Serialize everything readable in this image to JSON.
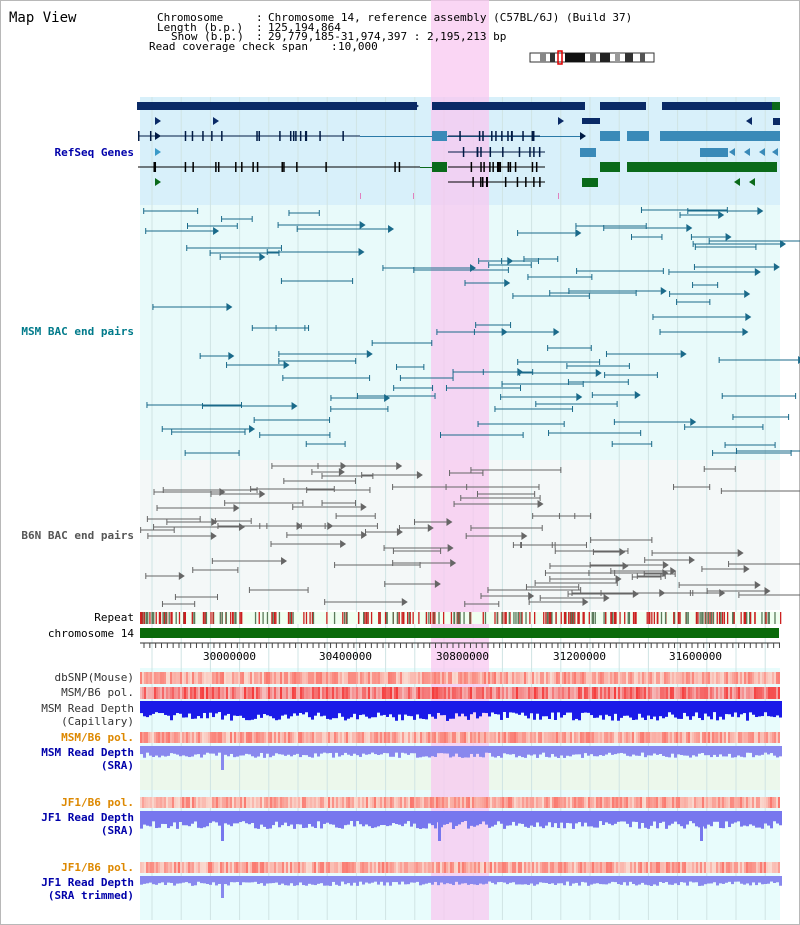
{
  "title": "Map View",
  "header": {
    "chrom_label": "Chromosome",
    "chrom_value": "Chromosome 14, reference assembly (C57BL/6J) (Build 37)",
    "length_label": "Length (b.p.)",
    "length_value": "125,194,864",
    "show_label": "Show (b.p.)",
    "show_value": "29,779,185-31,974,397 : 2,195,213 bp",
    "coverage_label": "Read coverage check span",
    "coverage_value": "10,000"
  },
  "tracks": {
    "refseq": "RefSeq Genes",
    "msm_bac": "MSM BAC end pairs",
    "b6n_bac": "B6N BAC end pairs",
    "repeat": "Repeat",
    "chromosome": "chromosome 14",
    "dbsnp": "dbSNP(Mouse)",
    "msm_b6_pol": "MSM/B6 pol.",
    "msm_depth_cap_1": "MSM Read Depth",
    "msm_depth_cap_2": "(Capillary)",
    "msm_b6_pol_2": "MSM/B6 pol.",
    "msm_depth_sra_1": "MSM Read Depth",
    "msm_depth_sra_2": "(SRA)",
    "jf1_b6_pol": "JF1/B6 pol.",
    "jf1_depth_sra_1": "JF1 Read Depth",
    "jf1_depth_sra_2": "(SRA)",
    "jf1_b6_pol_2": "JF1/B6 pol.",
    "jf1_depth_trim_1": "JF1 Read Depth",
    "jf1_depth_trim_2": "(SRA trimmed)"
  },
  "axis": {
    "ticks": [
      "30000000",
      "30400000",
      "30800000",
      "31200000",
      "31600000"
    ]
  },
  "colors": {
    "refseq_dark": "#0a2a66",
    "refseq_mid": "#3a8ab8",
    "refseq_green": "#0a6a1a",
    "bac_msm": "#1a6a8a",
    "bac_b6n": "#666666",
    "highlight": "#f8c8f0",
    "chromosome": "#0a6a0a",
    "label_blue": "#0000aa",
    "label_teal": "#007a8a",
    "label_orange": "#dd8800"
  }
}
